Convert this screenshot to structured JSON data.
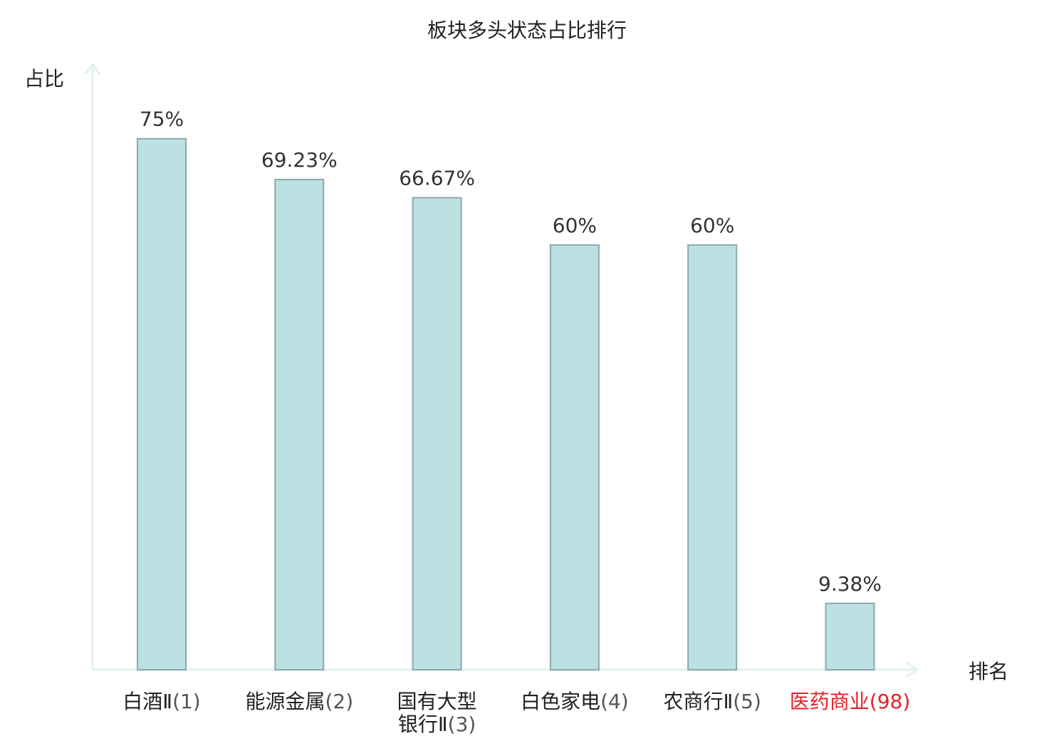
{
  "chart_data": {
    "type": "bar",
    "title": "板块多头状态占比排行",
    "ylabel": "占比",
    "xlabel": "排名",
    "unit": "%",
    "ylim": [
      0,
      80
    ],
    "grid": false,
    "categories": [
      {
        "name_lines": [
          "白酒Ⅱ"
        ],
        "rank_suffix": "(1)",
        "highlight": false
      },
      {
        "name_lines": [
          "能源金属"
        ],
        "rank_suffix": "(2)",
        "highlight": false
      },
      {
        "name_lines": [
          "国有大型",
          "银行Ⅱ"
        ],
        "rank_suffix": "(3)",
        "highlight": false
      },
      {
        "name_lines": [
          "白色家电"
        ],
        "rank_suffix": "(4)",
        "highlight": false
      },
      {
        "name_lines": [
          "农商行Ⅱ"
        ],
        "rank_suffix": "(5)",
        "highlight": false
      },
      {
        "name_lines": [
          "医药商业"
        ],
        "rank_suffix": "(98)",
        "highlight": true
      }
    ],
    "values": [
      75,
      69.23,
      66.67,
      60,
      60,
      9.38
    ],
    "value_labels": [
      "75%",
      "69.23%",
      "66.67%",
      "60%",
      "60%",
      "9.38%"
    ],
    "colors": {
      "bar_fill": "#bde0e3",
      "bar_stroke": "#8aa9ab",
      "axis": "#e0f2ef",
      "text": "#222222",
      "value_text": "#333333",
      "rank_text": "#555555",
      "highlight": "#e8202a"
    }
  }
}
